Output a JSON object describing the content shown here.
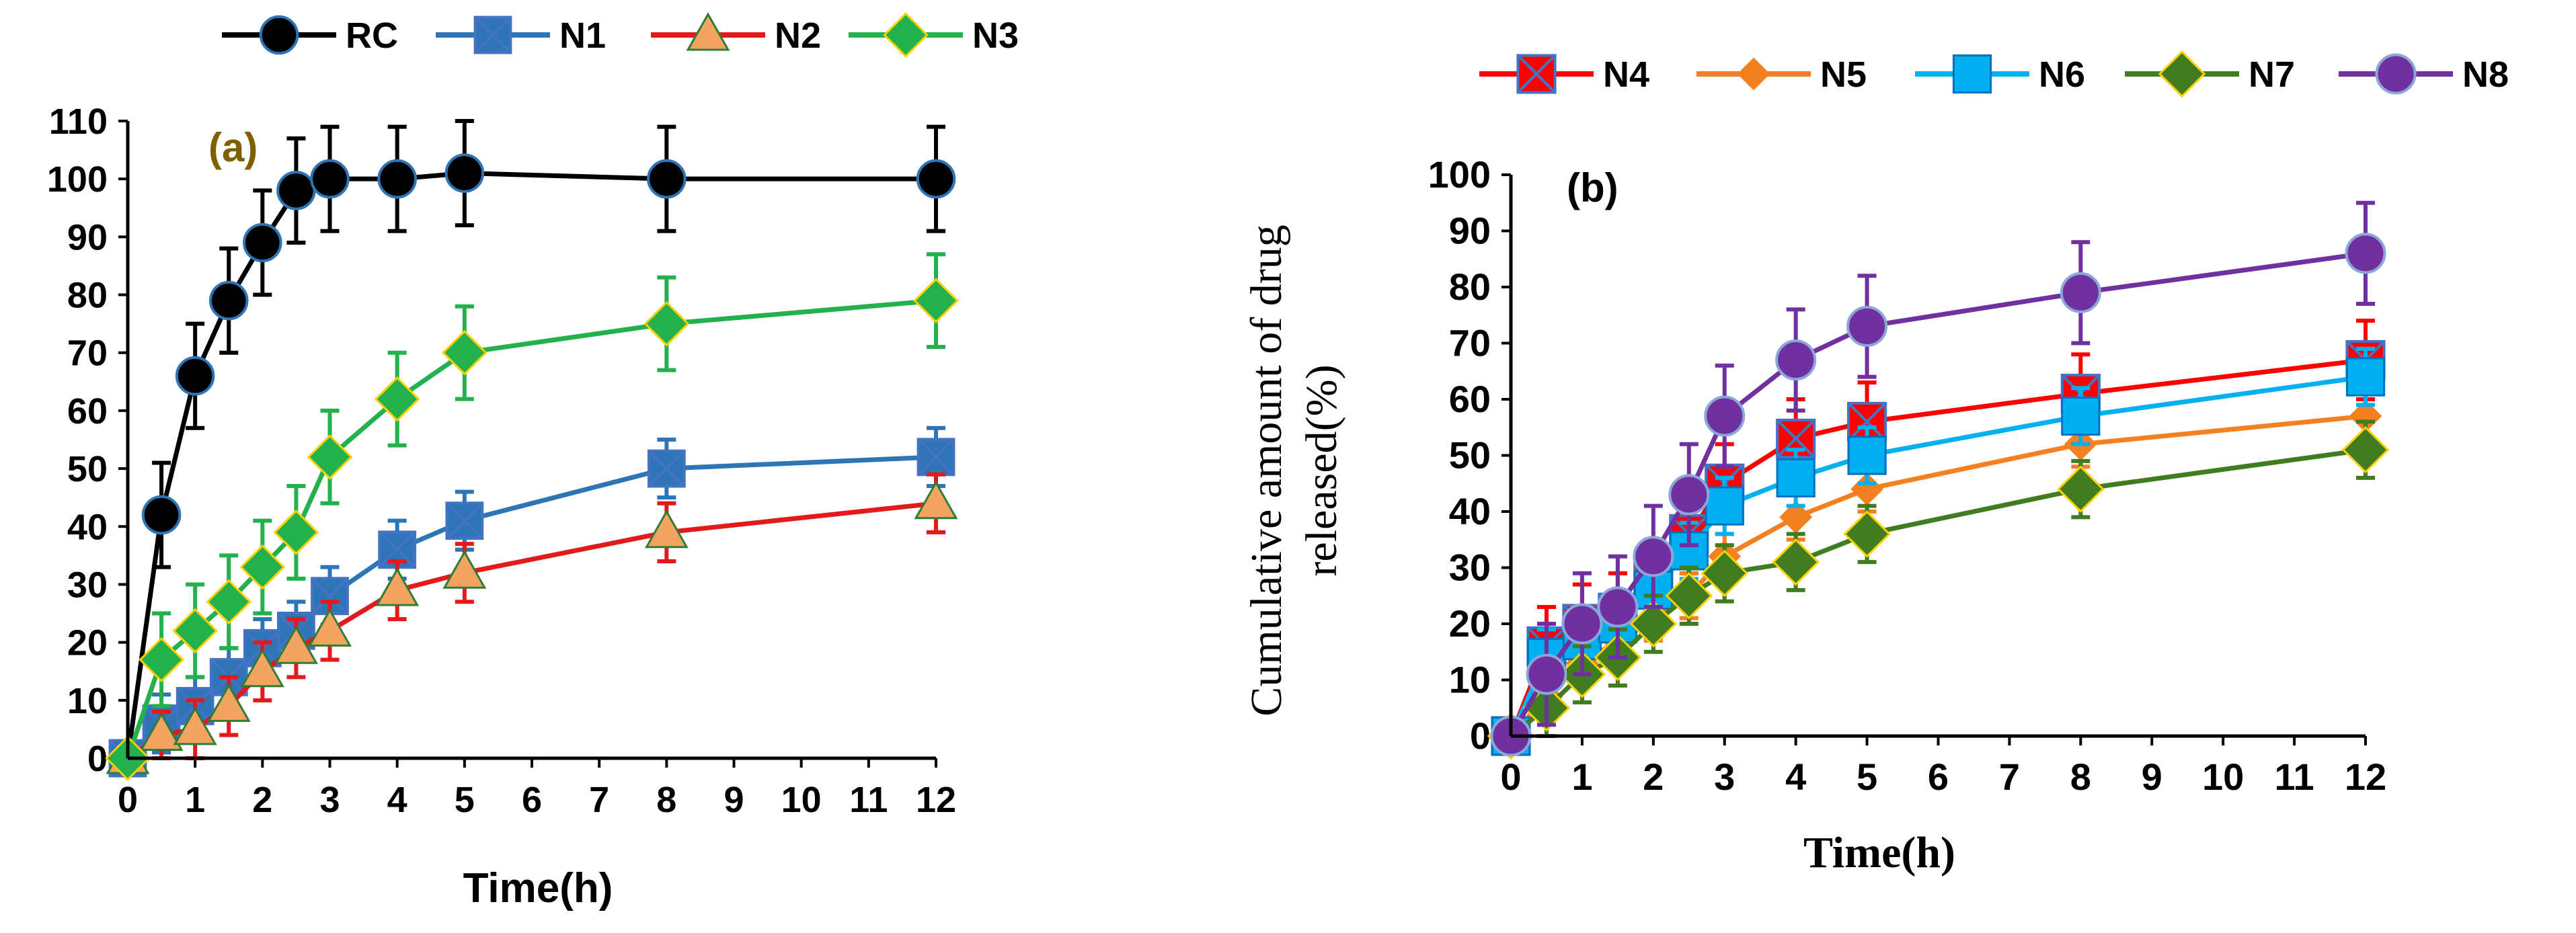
{
  "chart_data": [
    {
      "type": "line",
      "panel_label": "(a)",
      "xlabel": "Time(h)",
      "ylabel": "",
      "xlim": [
        0,
        12
      ],
      "ylim": [
        0,
        110
      ],
      "xticks": [
        0,
        1,
        2,
        3,
        4,
        5,
        6,
        7,
        8,
        9,
        10,
        11,
        12
      ],
      "yticks": [
        0,
        10,
        20,
        30,
        40,
        50,
        60,
        70,
        80,
        90,
        100,
        110
      ],
      "ytick_labels": [
        "0",
        "10",
        "20",
        "30",
        "40",
        "50",
        "60",
        "70",
        "80",
        "90",
        "100",
        "110"
      ],
      "grid": false,
      "legend_position": "top",
      "error_bars": true,
      "series": [
        {
          "name": "RC",
          "color": "#000000",
          "marker": "circle",
          "x": [
            0,
            0.5,
            1,
            1.5,
            2,
            2.5,
            3,
            4,
            5,
            8,
            12
          ],
          "y": [
            0,
            42,
            66,
            79,
            89,
            98,
            100,
            100,
            101,
            100,
            100
          ],
          "err": [
            0,
            9,
            9,
            9,
            9,
            9,
            9,
            9,
            9,
            9,
            9
          ]
        },
        {
          "name": "N1",
          "color": "#2E75B6",
          "marker": "x-square",
          "x": [
            0,
            0.5,
            1,
            1.5,
            2,
            2.5,
            3,
            4,
            5,
            8,
            12
          ],
          "y": [
            0,
            6,
            9,
            14,
            19,
            22,
            28,
            36,
            41,
            50,
            52
          ],
          "err": [
            0,
            5,
            5,
            5,
            5,
            5,
            5,
            5,
            5,
            5,
            5
          ]
        },
        {
          "name": "N2",
          "color": "#E31A1C",
          "marker": "triangle",
          "x": [
            0,
            0.5,
            1,
            1.5,
            2,
            2.5,
            3,
            4,
            5,
            8,
            12
          ],
          "y": [
            0,
            4,
            5,
            9,
            15,
            19,
            22,
            29,
            32,
            39,
            44
          ],
          "err": [
            0,
            4,
            5,
            5,
            5,
            5,
            5,
            5,
            5,
            5,
            5
          ]
        },
        {
          "name": "N3",
          "color": "#22B14C",
          "marker": "diamond",
          "x": [
            0,
            0.5,
            1,
            1.5,
            2,
            2.5,
            3,
            4,
            5,
            8,
            12
          ],
          "y": [
            0,
            17,
            22,
            27,
            33,
            39,
            52,
            62,
            70,
            75,
            79
          ],
          "err": [
            0,
            8,
            8,
            8,
            8,
            8,
            8,
            8,
            8,
            8,
            8
          ]
        }
      ]
    },
    {
      "type": "line",
      "panel_label": "(b)",
      "xlabel": "Time(h)",
      "ylabel": "Cumulative  amount of drug released(%)",
      "ylabel_lines": [
        "Cumulative  amount of drug",
        "released(%)"
      ],
      "xlim": [
        0,
        12
      ],
      "ylim": [
        0,
        100
      ],
      "xticks": [
        0,
        1,
        2,
        3,
        4,
        5,
        6,
        7,
        8,
        9,
        10,
        11,
        12
      ],
      "yticks": [
        0,
        10,
        20,
        30,
        40,
        50,
        60,
        70,
        80,
        90,
        100
      ],
      "grid": false,
      "legend_position": "top",
      "error_bars": true,
      "series": [
        {
          "name": "N4",
          "color": "#FF0000",
          "marker": "x-square",
          "x": [
            0,
            0.5,
            1,
            1.5,
            2,
            2.5,
            3,
            4,
            5,
            8,
            12
          ],
          "y": [
            0,
            16,
            20,
            22,
            28,
            36,
            45,
            53,
            56,
            61,
            67
          ],
          "err": [
            0,
            7,
            7,
            7,
            7,
            7,
            7,
            7,
            7,
            7,
            7
          ]
        },
        {
          "name": "N5",
          "color": "#F4801F",
          "marker": "diamond-small",
          "x": [
            0,
            0.5,
            1,
            1.5,
            2,
            2.5,
            3,
            4,
            5,
            8,
            12
          ],
          "y": [
            0,
            7,
            13,
            17,
            21,
            25,
            32,
            39,
            44,
            52,
            57
          ],
          "err": [
            0,
            4,
            4,
            4,
            4,
            4,
            4,
            4,
            4,
            4,
            4
          ]
        },
        {
          "name": "N6",
          "color": "#00B0F0",
          "marker": "square",
          "x": [
            0,
            0.5,
            1,
            1.5,
            2,
            2.5,
            3,
            4,
            5,
            8,
            12
          ],
          "y": [
            0,
            14,
            17,
            20,
            26,
            33,
            41,
            46,
            50,
            57,
            64
          ],
          "err": [
            0,
            5,
            5,
            5,
            5,
            5,
            5,
            5,
            5,
            5,
            5
          ]
        },
        {
          "name": "N7",
          "color": "#3F7D20",
          "marker": "diamond",
          "x": [
            0,
            0.5,
            1,
            1.5,
            2,
            2.5,
            3,
            4,
            5,
            8,
            12
          ],
          "y": [
            0,
            5,
            11,
            14,
            20,
            25,
            29,
            31,
            36,
            44,
            51
          ],
          "err": [
            0,
            5,
            5,
            5,
            5,
            5,
            5,
            5,
            5,
            5,
            5
          ]
        },
        {
          "name": "N8",
          "color": "#7030A0",
          "marker": "circle",
          "x": [
            0,
            0.5,
            1,
            1.5,
            2,
            2.5,
            3,
            4,
            5,
            8,
            12
          ],
          "y": [
            0,
            11,
            20,
            23,
            32,
            43,
            57,
            67,
            73,
            79,
            86
          ],
          "err": [
            0,
            9,
            9,
            9,
            9,
            9,
            9,
            9,
            9,
            9,
            9
          ]
        }
      ]
    }
  ]
}
